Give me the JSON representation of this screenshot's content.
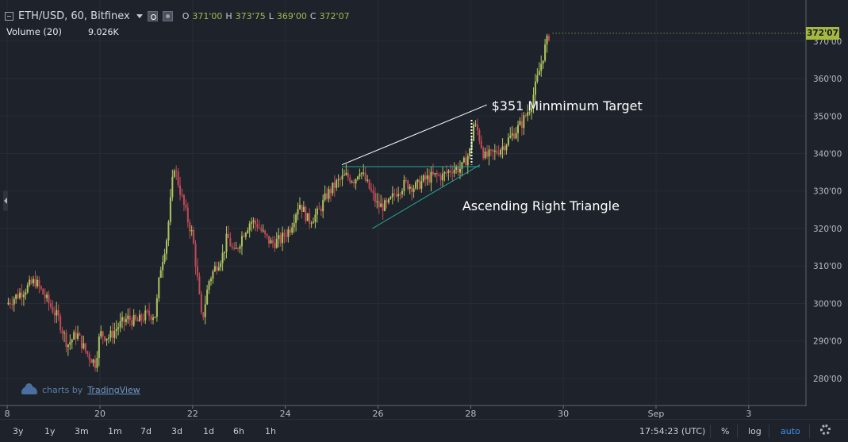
{
  "header": {
    "symbol": "ETH/USD, 60, Bitfinex",
    "ohlc": [
      {
        "key": "O",
        "value": "371'00"
      },
      {
        "key": "H",
        "value": "373'75"
      },
      {
        "key": "L",
        "value": "369'00"
      },
      {
        "key": "C",
        "value": "372'07"
      }
    ]
  },
  "volume_study": {
    "label": "Volume (20)",
    "value": "9.026K"
  },
  "watermark": {
    "prefix": "charts by",
    "brand": "TradingView"
  },
  "last_price_label": "372'07",
  "toolbar": {
    "ranges": [
      "3y",
      "1y",
      "3m",
      "1m",
      "7d",
      "3d",
      "1d",
      "6h",
      "1h"
    ],
    "time": "17:54:23 (UTC)",
    "percent": "%",
    "log": "log",
    "auto": "auto"
  },
  "colors": {
    "background": "#1e232b",
    "grid": "#262c35",
    "up_candle": "#b0c35e",
    "down_candle": "#c14a57",
    "resistance_line": "#26a69a",
    "target_line": "#ffffff",
    "last_price": "#a5b93e"
  },
  "chart_data": {
    "type": "candlestick",
    "title": "",
    "symbol": "ETH/USD",
    "interval": "60",
    "exchange": "Bitfinex",
    "x_tick_labels": [
      "8",
      "20",
      "22",
      "24",
      "26",
      "28",
      "30",
      "Sep",
      "3"
    ],
    "x_tick_days": [
      18,
      20,
      22,
      24,
      26,
      28,
      30,
      32,
      34
    ],
    "y_tick_labels": [
      "280'00",
      "290'00",
      "300'00",
      "310'00",
      "320'00",
      "330'00",
      "340'00",
      "350'00",
      "360'00",
      "370'00"
    ],
    "y_tick_values": [
      280,
      290,
      300,
      310,
      320,
      330,
      340,
      350,
      360,
      370
    ],
    "ylim": [
      273,
      378
    ],
    "xlim": [
      17.98,
      35.03
    ],
    "close_path": [
      [
        18.0,
        300
      ],
      [
        18.3,
        303
      ],
      [
        18.6,
        306
      ],
      [
        18.9,
        300
      ],
      [
        19.1,
        296
      ],
      [
        19.3,
        289
      ],
      [
        19.5,
        292
      ],
      [
        19.7,
        287
      ],
      [
        19.9,
        284
      ],
      [
        20.0,
        292
      ],
      [
        20.2,
        291
      ],
      [
        20.4,
        294
      ],
      [
        20.6,
        296
      ],
      [
        20.8,
        295
      ],
      [
        21.0,
        297
      ],
      [
        21.2,
        297
      ],
      [
        21.3,
        309
      ],
      [
        21.45,
        318
      ],
      [
        21.6,
        337
      ],
      [
        21.75,
        329
      ],
      [
        21.9,
        322
      ],
      [
        22.0,
        318
      ],
      [
        22.1,
        307
      ],
      [
        22.2,
        295
      ],
      [
        22.35,
        306
      ],
      [
        22.5,
        310
      ],
      [
        22.65,
        313
      ],
      [
        22.75,
        318
      ],
      [
        22.9,
        313
      ],
      [
        23.1,
        319
      ],
      [
        23.25,
        322
      ],
      [
        23.4,
        321
      ],
      [
        23.55,
        318
      ],
      [
        23.7,
        316
      ],
      [
        23.9,
        317
      ],
      [
        24.1,
        320
      ],
      [
        24.3,
        327
      ],
      [
        24.5,
        322
      ],
      [
        24.7,
        324
      ],
      [
        24.9,
        329
      ],
      [
        25.1,
        332
      ],
      [
        25.3,
        334
      ],
      [
        25.5,
        333
      ],
      [
        25.6,
        336
      ],
      [
        25.8,
        331
      ],
      [
        26.0,
        326
      ],
      [
        26.2,
        326
      ],
      [
        26.4,
        330
      ],
      [
        26.6,
        332
      ],
      [
        26.8,
        331
      ],
      [
        27.0,
        333
      ],
      [
        27.2,
        334
      ],
      [
        27.4,
        334
      ],
      [
        27.6,
        336
      ],
      [
        27.8,
        336
      ],
      [
        28.0,
        341
      ],
      [
        28.05,
        348
      ],
      [
        28.15,
        346
      ],
      [
        28.3,
        339
      ],
      [
        28.5,
        340
      ],
      [
        28.7,
        342
      ],
      [
        28.9,
        345
      ],
      [
        29.1,
        348
      ],
      [
        29.3,
        353
      ],
      [
        29.4,
        358
      ],
      [
        29.5,
        363
      ],
      [
        29.6,
        368
      ],
      [
        29.7,
        372.07
      ]
    ],
    "target_line": [
      [
        25.22,
        337
      ],
      [
        28.35,
        353
      ]
    ],
    "resistance_line": [
      [
        25.22,
        336.5
      ],
      [
        28.2,
        336.5
      ]
    ],
    "support_line": [
      [
        25.88,
        320
      ],
      [
        28.2,
        337
      ]
    ],
    "target_marker": [
      [
        28.02,
        349
      ],
      [
        28.02,
        337
      ]
    ],
    "annotations": [
      {
        "text": "$351 Minmimum Target",
        "x": 28.45,
        "y": 352.5
      },
      {
        "text": "Ascending Right Triangle",
        "x": 27.82,
        "y": 326
      }
    ]
  }
}
